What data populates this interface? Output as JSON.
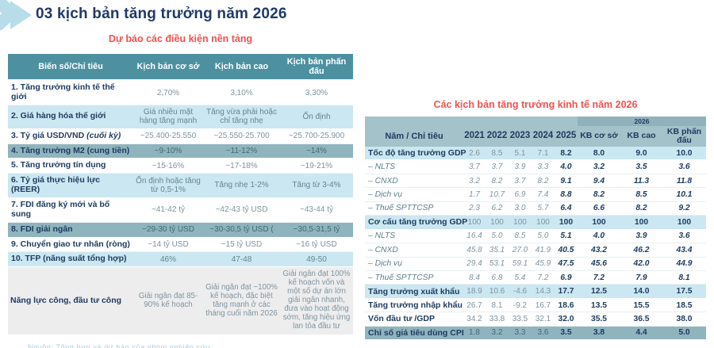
{
  "header": {
    "title": "03 kịch bản tăng trưởng năm 2026"
  },
  "colors": {
    "accent_navy": "#1f3a68",
    "accent_red": "#ee5351",
    "left_header_teal": "#4d91a0",
    "right_header_teal": "#a3c2ca",
    "group_strip_teal": "#8fb2bb",
    "light_blue_row": "#cbe7f1",
    "gray_teal_row": "#90b4bd",
    "light_gray_row": "#ededee",
    "icon_blue": "#b9dcea"
  },
  "left_section": {
    "title": "Dự báo các điều kiện nền tảng",
    "columns": [
      "Biến số/Chỉ tiêu",
      "Kịch bản cơ sở",
      "Kịch bản cao",
      "Kịch bản phấn đấu"
    ],
    "rows": [
      {
        "label": "1. Tăng trưởng kinh tế thế giới",
        "values": [
          "2,70%",
          "3,10%",
          "3,30%"
        ],
        "bg": "white"
      },
      {
        "label": "2. Giá hàng hóa thế giới",
        "values": [
          "Giá nhiều mặt hàng tăng mạnh",
          "Tăng vừa phải hoặc chỉ tăng nhẹ",
          "Ổn định"
        ],
        "bg": "blue"
      },
      {
        "label": "3. Tỷ giá USD/VND",
        "note": "(cuối kỳ)",
        "values": [
          "~25.400-25.550",
          "~25.550-25.700",
          "~25.700-25.900"
        ],
        "bg": "white"
      },
      {
        "label": "4. Tăng trưởng M2 (cung tiền)",
        "values": [
          "~9-10%",
          "~11-12%",
          "~14%"
        ],
        "bg": "gray"
      },
      {
        "label": "5. Tăng trưởng tín dụng",
        "values": [
          "~15-16%",
          "~17-18%",
          "~19-21%"
        ],
        "bg": "white"
      },
      {
        "label": "6. Tỷ giá thực hiệu lực (REER)",
        "values": [
          "Ổn định hoặc tăng từ 0,5-1%",
          "Tăng nhẹ 1-2%",
          "Tăng từ 3-4%"
        ],
        "bg": "blue"
      },
      {
        "label": "7. FDI đăng ký mới và bổ sung",
        "values": [
          "~41-42 tỷ",
          "~42-43 tỷ USD",
          "~43-44 tỷ"
        ],
        "bg": "white"
      },
      {
        "label": "8. FDI giải ngân",
        "values": [
          "~29-30 tỷ USD",
          "~30-30,5 tỷ USD (",
          "~30,5-31,5 tỷ"
        ],
        "bg": "gray"
      },
      {
        "label": "9. Chuyển giao tư nhân (ròng)",
        "values": [
          "~14 tỷ USD",
          "~15 tỷ USD",
          "~16 tỷ USD"
        ],
        "bg": "white"
      },
      {
        "label": "10. TFP (năng suất tổng hợp)",
        "values": [
          "46%",
          "47-48",
          "49-50"
        ],
        "bg": "blue"
      },
      {
        "label": "Năng lực công, đầu tư công",
        "values": [
          "Giải ngân đạt 85-90% kế hoạch",
          "Giải ngân đạt ~100% kế hoạch, đặc biệt tăng mạnh ở các tháng cuối năm 2026",
          "Giải ngân đạt 100% kế hoạch vốn và một số dự án lớn giải ngân nhanh, đưa vào hoạt động sớm, tăng hiệu ứng lan tỏa đầu tư"
        ],
        "bg": "lightgray"
      }
    ]
  },
  "right_section": {
    "title": "Các kịch bản tăng trưởng kinh tế năm 2026",
    "group_header": "2026",
    "columns": [
      "Năm / Chỉ tiêu",
      "2021",
      "2022",
      "2023",
      "2024",
      "2025",
      "KB cơ sở",
      "KB cao",
      "KB phấn đấu"
    ],
    "rows": [
      {
        "label": "Tốc độ tăng trưởng GDP",
        "kind": "main",
        "bg": "blue",
        "values": [
          "2.6",
          "8.5",
          "5.1",
          "7.1",
          "8.2",
          "8.0",
          "9.0",
          "10.0"
        ]
      },
      {
        "label": "– NLTS",
        "kind": "sub",
        "bg": "white",
        "values": [
          "3.7",
          "3.7",
          "3.9",
          "3.3",
          "4.0",
          "3.2",
          "3.5",
          "3.6"
        ]
      },
      {
        "label": "– CNXD",
        "kind": "sub",
        "bg": "white",
        "values": [
          "3.2",
          "8.2",
          "3.7",
          "8.2",
          "9.1",
          "9.4",
          "11.3",
          "11.8"
        ]
      },
      {
        "label": "– Dịch vụ",
        "kind": "sub",
        "bg": "white",
        "values": [
          "1.7",
          "10.7",
          "6.9",
          "7.4",
          "8.8",
          "8.2",
          "8.5",
          "10.1"
        ]
      },
      {
        "label": "– Thuế SPTTCSP",
        "kind": "sub",
        "bg": "white",
        "values": [
          "2.3",
          "6.2",
          "3.0",
          "5.7",
          "6.4",
          "6.6",
          "8.2",
          "9.2"
        ]
      },
      {
        "label": "Cơ cấu tăng trưởng GDP",
        "kind": "main",
        "bg": "blue",
        "values": [
          "100",
          "100",
          "100",
          "100",
          "100",
          "100",
          "100",
          "100"
        ]
      },
      {
        "label": "– NLTS",
        "kind": "sub",
        "bg": "white",
        "values": [
          "16.4",
          "5.0",
          "8.5",
          "5.0",
          "5.1",
          "4.0",
          "3.9",
          "3.6"
        ]
      },
      {
        "label": "– CNXD",
        "kind": "sub",
        "bg": "white",
        "values": [
          "45.8",
          "35.1",
          "27.0",
          "41.9",
          "40.5",
          "43.2",
          "46.2",
          "43.4"
        ]
      },
      {
        "label": "– Dịch vụ",
        "kind": "sub",
        "bg": "white",
        "values": [
          "29.4",
          "53.1",
          "59.1",
          "45.9",
          "47.5",
          "45.6",
          "42.0",
          "44.9"
        ]
      },
      {
        "label": "– Thuế SPTTCSP",
        "kind": "sub",
        "bg": "white",
        "values": [
          "8.4",
          "6.8",
          "5.4",
          "7.2",
          "6.9",
          "7.2",
          "7.9",
          "8.1"
        ]
      },
      {
        "label": "Tăng trưởng xuất khẩu",
        "kind": "main",
        "bg": "blue",
        "values": [
          "18.9",
          "10.6",
          "-4.6",
          "14.3",
          "17.7",
          "12.5",
          "14.0",
          "17.5"
        ]
      },
      {
        "label": "Tăng trưởng nhập khẩu",
        "kind": "main",
        "bg": "white",
        "values": [
          "26.7",
          "8.1",
          "-9.2",
          "16.7",
          "18.6",
          "13.5",
          "15.5",
          "18.5"
        ]
      },
      {
        "label": "Vốn đầu tư /GDP",
        "kind": "main",
        "bg": "white",
        "values": [
          "34.2",
          "33.8",
          "33.5",
          "32.1",
          "32.0",
          "35.5",
          "36.5",
          "38.0"
        ]
      },
      {
        "label": "Chỉ số giá tiêu dùng CPI",
        "kind": "main",
        "bg": "gray",
        "values": [
          "1.8",
          "3.2",
          "3.3",
          "3.6",
          "3.5",
          "3.8",
          "4.4",
          "5.0"
        ]
      }
    ]
  },
  "footnote_clipped": "Nguồn: Tổng hợp và dự báo của nhóm nghiên cứu"
}
